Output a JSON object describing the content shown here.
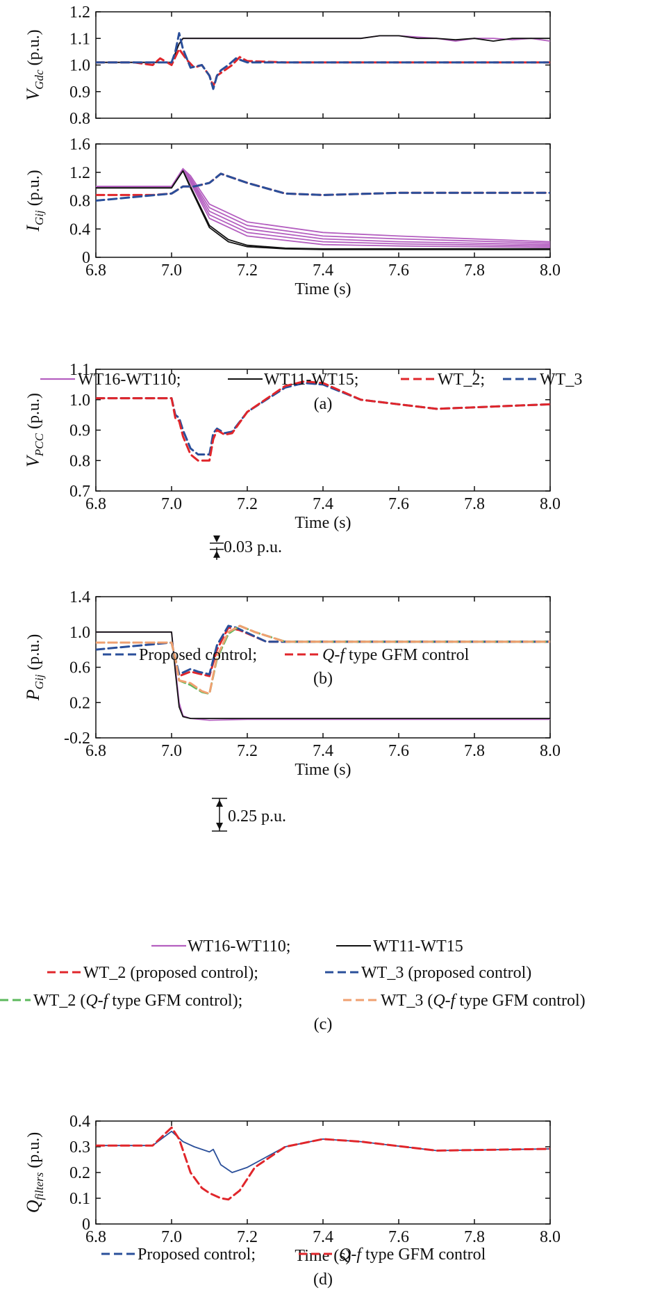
{
  "panels": [
    {
      "caption": "(a)"
    },
    {
      "caption": "(b)"
    },
    {
      "caption": "(c)"
    },
    {
      "caption": "(d)"
    }
  ],
  "legends": {
    "a": [
      "WT16-WT110;",
      "WT11-WT15;",
      "WT_2;",
      "WT_3"
    ],
    "b": [
      "Proposed control;",
      "type GFM control"
    ],
    "c_row1": [
      "WT16-WT110;",
      "WT11-WT15"
    ],
    "c_row2": [
      "WT_2 (proposed control);",
      "WT_3 (proposed control)"
    ],
    "c_row3": [
      "WT_2 (",
      "type GFM control);",
      "WT_3 (",
      "type GFM control)"
    ],
    "d": [
      "Proposed control;",
      "type GFM control"
    ],
    "qf": "Q-f"
  },
  "colors": {
    "purple": "#b45fc0",
    "black": "#111111",
    "red": "#e0262b",
    "blue": "#2a4f9a",
    "green": "#5cb85c",
    "orange": "#f0a070"
  },
  "chart_data": [
    {
      "id": "a1",
      "type": "line",
      "ylabel_main": "V",
      "ylabel_sub": "Gdc",
      "ylabel_unit": " (p.u.)",
      "xlim": [
        6.8,
        8.0
      ],
      "ylim": [
        0.8,
        1.2
      ],
      "yticks": [
        "0.8",
        "0.9",
        "1.0",
        "1.1",
        "1.2"
      ],
      "xticks": [],
      "series": [
        {
          "name": "WT16-WT110",
          "style": "purple",
          "x": [
            6.8,
            7.0,
            7.02,
            7.03,
            7.1,
            7.2,
            7.3,
            7.4,
            7.5,
            7.55,
            7.6,
            7.65,
            7.7,
            7.75,
            7.8,
            7.85,
            7.9,
            7.95,
            8.0
          ],
          "y": [
            1.01,
            1.01,
            1.08,
            1.1,
            1.1,
            1.1,
            1.1,
            1.1,
            1.1,
            1.11,
            1.11,
            1.105,
            1.1,
            1.09,
            1.1,
            1.1,
            1.095,
            1.1,
            1.09
          ]
        },
        {
          "name": "WT11-WT15",
          "style": "black",
          "x": [
            6.8,
            7.0,
            7.02,
            7.03,
            7.1,
            7.2,
            7.3,
            7.4,
            7.5,
            7.55,
            7.6,
            7.65,
            7.7,
            7.75,
            7.8,
            7.85,
            7.9,
            7.95,
            8.0
          ],
          "y": [
            1.01,
            1.01,
            1.08,
            1.1,
            1.1,
            1.1,
            1.1,
            1.1,
            1.1,
            1.11,
            1.11,
            1.1,
            1.1,
            1.095,
            1.1,
            1.09,
            1.1,
            1.1,
            1.1
          ]
        },
        {
          "name": "WT_2",
          "style": "red",
          "x": [
            6.8,
            6.9,
            6.95,
            6.97,
            7.0,
            7.02,
            7.04,
            7.06,
            7.08,
            7.1,
            7.11,
            7.12,
            7.14,
            7.16,
            7.18,
            7.2,
            7.3,
            8.0
          ],
          "y": [
            1.01,
            1.01,
            1.0,
            1.025,
            1.0,
            1.06,
            1.02,
            0.99,
            1.0,
            0.96,
            0.92,
            0.96,
            0.98,
            1.0,
            1.03,
            1.015,
            1.01,
            1.01
          ]
        },
        {
          "name": "WT_3",
          "style": "blue",
          "x": [
            6.8,
            7.0,
            7.01,
            7.02,
            7.03,
            7.05,
            7.08,
            7.1,
            7.11,
            7.12,
            7.13,
            7.15,
            7.17,
            7.2,
            7.3,
            8.0
          ],
          "y": [
            1.01,
            1.01,
            1.05,
            1.12,
            1.06,
            0.99,
            1.0,
            0.96,
            0.91,
            0.96,
            0.98,
            1.0,
            1.025,
            1.01,
            1.01,
            1.01
          ]
        }
      ]
    },
    {
      "id": "a2",
      "type": "line",
      "ylabel_main": "I",
      "ylabel_sub": "Gij",
      "ylabel_unit": " (p.u.)",
      "xlabel": "Time (s)",
      "xlim": [
        6.8,
        8.0
      ],
      "ylim": [
        0,
        1.6
      ],
      "yticks": [
        "0",
        "0.4",
        "0.8",
        "1.2",
        "1.6"
      ],
      "xticks": [
        "6.8",
        "7.0",
        "7.2",
        "7.4",
        "7.6",
        "7.8",
        "8.0"
      ],
      "series": [
        {
          "name": "WT16-WT110",
          "style": "purple",
          "x": [
            6.8,
            7.0,
            7.03,
            7.05,
            7.1,
            7.2,
            7.4,
            7.6,
            8.0
          ],
          "y": [
            1.0,
            1.0,
            1.25,
            1.15,
            0.75,
            0.5,
            0.35,
            0.3,
            0.22
          ]
        },
        {
          "name": "WT16-WT110",
          "style": "purple",
          "x": [
            6.8,
            7.0,
            7.03,
            7.05,
            7.1,
            7.2,
            7.4,
            7.6,
            8.0
          ],
          "y": [
            1.0,
            1.0,
            1.25,
            1.12,
            0.7,
            0.45,
            0.3,
            0.26,
            0.2
          ]
        },
        {
          "name": "WT16-WT110",
          "style": "purple",
          "x": [
            6.8,
            7.0,
            7.03,
            7.05,
            7.1,
            7.2,
            7.4,
            7.6,
            8.0
          ],
          "y": [
            1.0,
            1.0,
            1.25,
            1.1,
            0.65,
            0.4,
            0.26,
            0.22,
            0.18
          ]
        },
        {
          "name": "WT16-WT110",
          "style": "purple",
          "x": [
            6.8,
            7.0,
            7.03,
            7.05,
            7.1,
            7.2,
            7.4,
            7.6,
            8.0
          ],
          "y": [
            1.0,
            1.0,
            1.25,
            1.08,
            0.6,
            0.35,
            0.22,
            0.19,
            0.16
          ]
        },
        {
          "name": "WT16-WT110",
          "style": "purple",
          "x": [
            6.8,
            7.0,
            7.03,
            7.05,
            7.1,
            7.2,
            7.4,
            7.6,
            8.0
          ],
          "y": [
            1.0,
            1.0,
            1.25,
            1.05,
            0.55,
            0.3,
            0.18,
            0.16,
            0.14
          ]
        },
        {
          "name": "WT11-WT15",
          "style": "black",
          "x": [
            6.8,
            7.0,
            7.03,
            7.05,
            7.1,
            7.15,
            7.2,
            7.3,
            7.4,
            8.0
          ],
          "y": [
            0.98,
            0.98,
            1.22,
            1.0,
            0.45,
            0.25,
            0.17,
            0.13,
            0.12,
            0.12
          ]
        },
        {
          "name": "WT11-WT15",
          "style": "black",
          "x": [
            6.8,
            7.0,
            7.03,
            7.05,
            7.1,
            7.15,
            7.2,
            7.3,
            7.4,
            8.0
          ],
          "y": [
            0.98,
            0.98,
            1.22,
            0.98,
            0.42,
            0.22,
            0.15,
            0.12,
            0.11,
            0.11
          ]
        },
        {
          "name": "WT_2",
          "style": "red",
          "x": [
            6.8,
            6.95,
            7.0,
            7.03,
            7.06,
            7.1,
            7.13,
            7.2,
            7.3,
            7.4,
            7.6,
            7.8,
            8.0
          ],
          "y": [
            0.88,
            0.88,
            0.9,
            1.0,
            1.0,
            1.05,
            1.18,
            1.05,
            0.9,
            0.88,
            0.91,
            0.91,
            0.91
          ]
        },
        {
          "name": "WT_3",
          "style": "blue",
          "x": [
            6.8,
            6.9,
            7.0,
            7.03,
            7.06,
            7.1,
            7.13,
            7.2,
            7.3,
            7.4,
            7.6,
            7.8,
            8.0
          ],
          "y": [
            0.8,
            0.85,
            0.9,
            1.0,
            1.0,
            1.05,
            1.18,
            1.05,
            0.9,
            0.88,
            0.91,
            0.91,
            0.91
          ]
        }
      ]
    },
    {
      "id": "b",
      "type": "line",
      "ylabel_main": "V",
      "ylabel_sub": "PCC",
      "ylabel_unit": " (p.u.)",
      "xlabel": "Time (s)",
      "xlim": [
        6.8,
        8.0
      ],
      "ylim": [
        0.7,
        1.1
      ],
      "yticks": [
        "0.7",
        "0.8",
        "0.9",
        "1.0",
        "1.1"
      ],
      "xticks": [
        "6.8",
        "7.0",
        "7.2",
        "7.4",
        "7.6",
        "7.8",
        "8.0"
      ],
      "annotation": "0.03 p.u.",
      "series": [
        {
          "name": "Proposed control",
          "style": "blue",
          "x": [
            6.8,
            7.0,
            7.01,
            7.02,
            7.03,
            7.05,
            7.07,
            7.1,
            7.11,
            7.12,
            7.14,
            7.16,
            7.2,
            7.3,
            7.35,
            7.4,
            7.5,
            7.7,
            8.0
          ],
          "y": [
            1.005,
            1.005,
            0.95,
            0.94,
            0.9,
            0.84,
            0.82,
            0.82,
            0.89,
            0.905,
            0.89,
            0.895,
            0.96,
            1.04,
            1.055,
            1.05,
            1.0,
            0.97,
            0.985
          ]
        },
        {
          "name": "type GFM control",
          "style": "red",
          "x": [
            6.8,
            7.0,
            7.01,
            7.02,
            7.03,
            7.05,
            7.07,
            7.1,
            7.11,
            7.12,
            7.14,
            7.16,
            7.2,
            7.3,
            7.35,
            7.4,
            7.5,
            7.7,
            8.0
          ],
          "y": [
            1.005,
            1.005,
            0.94,
            0.93,
            0.88,
            0.82,
            0.8,
            0.8,
            0.87,
            0.9,
            0.885,
            0.89,
            0.96,
            1.045,
            1.06,
            1.055,
            1.0,
            0.97,
            0.985
          ]
        }
      ]
    },
    {
      "id": "c",
      "type": "line",
      "ylabel_main": "P",
      "ylabel_sub": "Gij",
      "ylabel_unit": " (p.u.)",
      "xlabel": "Time (s)",
      "xlim": [
        6.8,
        8.0
      ],
      "ylim": [
        -0.2,
        1.4
      ],
      "yticks": [
        "-0.2",
        "0.2",
        "0.6",
        "1.0",
        "1.4"
      ],
      "xticks": [
        "6.8",
        "7.0",
        "7.2",
        "7.4",
        "7.6",
        "7.8",
        "8.0"
      ],
      "annotation": "0.25 p.u.",
      "series": [
        {
          "name": "WT16-WT110",
          "style": "purple",
          "x": [
            6.8,
            7.0,
            7.01,
            7.02,
            7.03,
            7.05,
            7.1,
            7.2,
            8.0
          ],
          "y": [
            1.0,
            1.0,
            0.6,
            0.2,
            0.05,
            0.02,
            0.0,
            0.01,
            0.01
          ]
        },
        {
          "name": "WT11-WT15",
          "style": "black",
          "x": [
            6.8,
            7.0,
            7.01,
            7.02,
            7.03,
            7.05,
            7.1,
            7.2,
            8.0
          ],
          "y": [
            1.0,
            1.0,
            0.55,
            0.15,
            0.04,
            0.02,
            0.02,
            0.02,
            0.02
          ]
        },
        {
          "name": "WT_2 (proposed control)",
          "style": "red",
          "x": [
            6.8,
            7.0,
            7.01,
            7.02,
            7.05,
            7.07,
            7.1,
            7.12,
            7.15,
            7.18,
            7.25,
            8.0
          ],
          "y": [
            0.88,
            0.88,
            0.7,
            0.5,
            0.55,
            0.53,
            0.5,
            0.8,
            1.05,
            1.02,
            0.89,
            0.89
          ]
        },
        {
          "name": "WT_3 (proposed control)",
          "style": "blue",
          "x": [
            6.8,
            6.9,
            7.0,
            7.01,
            7.02,
            7.05,
            7.07,
            7.1,
            7.12,
            7.15,
            7.17,
            7.25,
            8.0
          ],
          "y": [
            0.8,
            0.84,
            0.88,
            0.7,
            0.52,
            0.58,
            0.55,
            0.52,
            0.85,
            1.07,
            1.05,
            0.89,
            0.89
          ]
        },
        {
          "name": "WT_2 (type GFM control)",
          "style": "green",
          "x": [
            6.8,
            7.0,
            7.01,
            7.02,
            7.05,
            7.08,
            7.1,
            7.12,
            7.15,
            7.18,
            7.22,
            7.3,
            8.0
          ],
          "y": [
            0.88,
            0.88,
            0.7,
            0.45,
            0.4,
            0.32,
            0.3,
            0.7,
            0.98,
            1.07,
            1.0,
            0.89,
            0.89
          ]
        },
        {
          "name": "WT_3 (type GFM control)",
          "style": "orange",
          "x": [
            6.8,
            7.0,
            7.01,
            7.02,
            7.05,
            7.08,
            7.1,
            7.12,
            7.15,
            7.18,
            7.22,
            7.3,
            8.0
          ],
          "y": [
            0.88,
            0.88,
            0.7,
            0.45,
            0.42,
            0.33,
            0.3,
            0.72,
            1.0,
            1.07,
            1.0,
            0.89,
            0.89
          ]
        }
      ]
    },
    {
      "id": "d",
      "type": "line",
      "ylabel_main": "Q",
      "ylabel_sub": "filters",
      "ylabel_unit": " (p.u.)",
      "xlabel": "Time (s)",
      "xlim": [
        6.8,
        8.0
      ],
      "ylim": [
        0,
        0.4
      ],
      "yticks": [
        "0",
        "0.1",
        "0.2",
        "0.3",
        "0.4"
      ],
      "xticks": [
        "6.8",
        "7.0",
        "7.2",
        "7.4",
        "7.6",
        "7.8",
        "8.0"
      ],
      "series": [
        {
          "name": "Proposed control",
          "style": "blue-solid",
          "x": [
            6.8,
            6.95,
            7.0,
            7.03,
            7.06,
            7.1,
            7.11,
            7.13,
            7.16,
            7.2,
            7.3,
            7.4,
            7.5,
            7.7,
            8.0
          ],
          "y": [
            0.305,
            0.305,
            0.36,
            0.32,
            0.3,
            0.28,
            0.29,
            0.23,
            0.2,
            0.22,
            0.3,
            0.33,
            0.32,
            0.285,
            0.292
          ]
        },
        {
          "name": "type GFM control",
          "style": "red",
          "x": [
            6.8,
            6.95,
            7.0,
            7.02,
            7.05,
            7.08,
            7.1,
            7.13,
            7.15,
            7.18,
            7.22,
            7.3,
            7.4,
            7.5,
            7.7,
            8.0
          ],
          "y": [
            0.305,
            0.305,
            0.375,
            0.33,
            0.2,
            0.14,
            0.12,
            0.1,
            0.095,
            0.13,
            0.22,
            0.3,
            0.33,
            0.32,
            0.285,
            0.292
          ]
        }
      ]
    }
  ]
}
